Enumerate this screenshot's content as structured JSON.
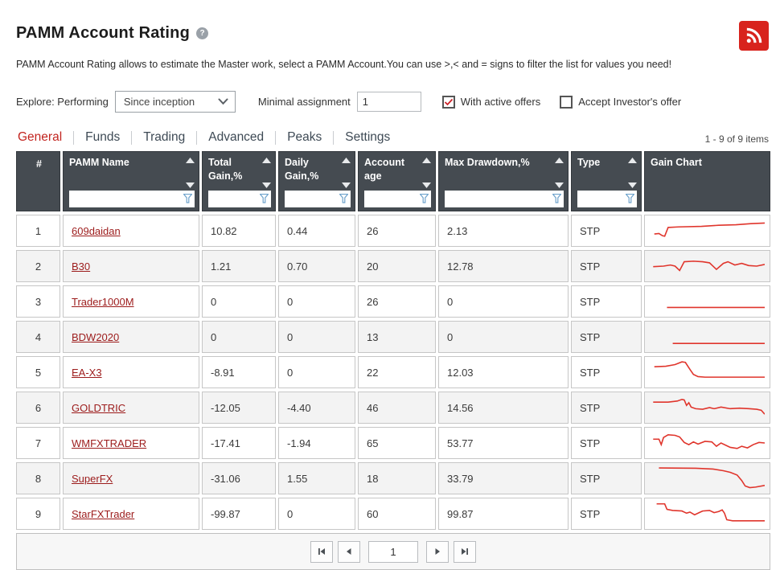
{
  "page": {
    "title": "PAMM Account Rating",
    "help_glyph": "?",
    "description": "PAMM Account Rating allows to estimate the Master work, select a PAMM Account.You can use >,< and = signs to filter the list for values you need!"
  },
  "controls": {
    "explore_label": "Explore: Performing",
    "period_selected": "Since inception",
    "minimal_assignment_label": "Minimal assignment",
    "minimal_assignment_value": "1",
    "checkboxes": [
      {
        "label": "With active offers",
        "checked": true
      },
      {
        "label": "Accept Investor's offer",
        "checked": false
      }
    ]
  },
  "tabs": {
    "items": [
      {
        "label": "General",
        "active": true
      },
      {
        "label": "Funds",
        "active": false
      },
      {
        "label": "Trading",
        "active": false
      },
      {
        "label": "Advanced",
        "active": false
      },
      {
        "label": "Peaks",
        "active": false
      },
      {
        "label": "Settings",
        "active": false
      }
    ],
    "items_count": "1 - 9 of 9 items"
  },
  "table": {
    "columns": [
      {
        "key": "idx",
        "label": "#",
        "sortable": false,
        "filterable": false,
        "align": "center"
      },
      {
        "key": "name",
        "label": "PAMM Name",
        "sortable": true,
        "filterable": true
      },
      {
        "key": "total_gain",
        "label": "Total Gain,%",
        "sortable": true,
        "filterable": true
      },
      {
        "key": "daily_gain",
        "label": "Daily Gain,%",
        "sortable": true,
        "filterable": true
      },
      {
        "key": "account_age",
        "label": "Account age",
        "sortable": true,
        "filterable": true
      },
      {
        "key": "max_drawdown",
        "label": "Max Drawdown,%",
        "sortable": true,
        "filterable": true
      },
      {
        "key": "type",
        "label": "Type",
        "sortable": true,
        "filterable": true
      },
      {
        "key": "chart",
        "label": "Gain Chart",
        "sortable": false,
        "filterable": false
      }
    ],
    "rows": [
      {
        "idx": "1",
        "name": "609daidan",
        "total_gain": "10.82",
        "daily_gain": "0.44",
        "account_age": "26",
        "max_drawdown": "2.13",
        "type": "STP",
        "spark": [
          [
            4,
            62
          ],
          [
            8,
            60
          ],
          [
            11,
            68
          ],
          [
            13,
            70
          ],
          [
            16,
            38
          ],
          [
            25,
            36
          ],
          [
            45,
            34
          ],
          [
            60,
            30
          ],
          [
            75,
            28
          ],
          [
            88,
            24
          ],
          [
            100,
            22
          ]
        ]
      },
      {
        "idx": "2",
        "name": "B30",
        "total_gain": "1.21",
        "daily_gain": "0.70",
        "account_age": "20",
        "max_drawdown": "12.78",
        "type": "STP",
        "spark": [
          [
            3,
            52
          ],
          [
            12,
            50
          ],
          [
            18,
            46
          ],
          [
            22,
            50
          ],
          [
            26,
            66
          ],
          [
            30,
            34
          ],
          [
            38,
            32
          ],
          [
            46,
            34
          ],
          [
            52,
            38
          ],
          [
            58,
            62
          ],
          [
            64,
            40
          ],
          [
            68,
            34
          ],
          [
            74,
            46
          ],
          [
            80,
            40
          ],
          [
            86,
            48
          ],
          [
            93,
            50
          ],
          [
            100,
            44
          ]
        ]
      },
      {
        "idx": "3",
        "name": "Trader1000M",
        "total_gain": "0",
        "daily_gain": "0",
        "account_age": "26",
        "max_drawdown": "0",
        "type": "STP",
        "spark": [
          [
            15,
            72
          ],
          [
            100,
            72
          ]
        ]
      },
      {
        "idx": "4",
        "name": "BDW2020",
        "total_gain": "0",
        "daily_gain": "0",
        "account_age": "13",
        "max_drawdown": "0",
        "type": "STP",
        "spark": [
          [
            20,
            74
          ],
          [
            100,
            74
          ]
        ]
      },
      {
        "idx": "5",
        "name": "EA-X3",
        "total_gain": "-8.91",
        "daily_gain": "0",
        "account_age": "22",
        "max_drawdown": "12.03",
        "type": "STP",
        "spark": [
          [
            4,
            30
          ],
          [
            14,
            28
          ],
          [
            22,
            22
          ],
          [
            28,
            12
          ],
          [
            31,
            14
          ],
          [
            35,
            40
          ],
          [
            38,
            58
          ],
          [
            42,
            66
          ],
          [
            48,
            68
          ],
          [
            100,
            68
          ]
        ]
      },
      {
        "idx": "6",
        "name": "GOLDTRIC",
        "total_gain": "-12.05",
        "daily_gain": "-4.40",
        "account_age": "46",
        "max_drawdown": "14.56",
        "type": "STP",
        "spark": [
          [
            3,
            30
          ],
          [
            16,
            30
          ],
          [
            24,
            26
          ],
          [
            28,
            20
          ],
          [
            30,
            22
          ],
          [
            32,
            42
          ],
          [
            34,
            32
          ],
          [
            36,
            48
          ],
          [
            40,
            54
          ],
          [
            46,
            56
          ],
          [
            52,
            50
          ],
          [
            56,
            54
          ],
          [
            62,
            48
          ],
          [
            70,
            54
          ],
          [
            78,
            52
          ],
          [
            86,
            54
          ],
          [
            93,
            56
          ],
          [
            97,
            60
          ],
          [
            100,
            74
          ]
        ]
      },
      {
        "idx": "7",
        "name": "WMFXTRADER",
        "total_gain": "-17.41",
        "daily_gain": "-1.94",
        "account_age": "65",
        "max_drawdown": "53.77",
        "type": "STP",
        "spark": [
          [
            3,
            36
          ],
          [
            8,
            36
          ],
          [
            10,
            56
          ],
          [
            12,
            30
          ],
          [
            16,
            20
          ],
          [
            22,
            22
          ],
          [
            26,
            28
          ],
          [
            30,
            48
          ],
          [
            34,
            56
          ],
          [
            38,
            46
          ],
          [
            42,
            54
          ],
          [
            48,
            44
          ],
          [
            54,
            46
          ],
          [
            58,
            62
          ],
          [
            62,
            50
          ],
          [
            66,
            58
          ],
          [
            70,
            66
          ],
          [
            76,
            70
          ],
          [
            80,
            62
          ],
          [
            85,
            68
          ],
          [
            90,
            56
          ],
          [
            95,
            48
          ],
          [
            100,
            50
          ]
        ]
      },
      {
        "idx": "8",
        "name": "SuperFX",
        "total_gain": "-31.06",
        "daily_gain": "1.55",
        "account_age": "18",
        "max_drawdown": "33.79",
        "type": "STP",
        "spark": [
          [
            8,
            12
          ],
          [
            40,
            13
          ],
          [
            55,
            16
          ],
          [
            64,
            22
          ],
          [
            70,
            28
          ],
          [
            76,
            38
          ],
          [
            80,
            58
          ],
          [
            83,
            78
          ],
          [
            87,
            84
          ],
          [
            92,
            82
          ],
          [
            100,
            76
          ]
        ]
      },
      {
        "idx": "9",
        "name": "StarFXTrader",
        "total_gain": "-99.87",
        "daily_gain": "0",
        "account_age": "60",
        "max_drawdown": "99.87",
        "type": "STP",
        "spark": [
          [
            6,
            14
          ],
          [
            13,
            14
          ],
          [
            15,
            34
          ],
          [
            20,
            38
          ],
          [
            28,
            40
          ],
          [
            32,
            48
          ],
          [
            35,
            44
          ],
          [
            39,
            54
          ],
          [
            43,
            46
          ],
          [
            46,
            40
          ],
          [
            52,
            38
          ],
          [
            56,
            46
          ],
          [
            60,
            42
          ],
          [
            63,
            36
          ],
          [
            65,
            48
          ],
          [
            67,
            72
          ],
          [
            72,
            76
          ],
          [
            100,
            76
          ]
        ]
      }
    ]
  },
  "pagination": {
    "current_page": "1"
  },
  "colors": {
    "accent_red": "#c2241f",
    "spark_red": "#e0352c",
    "header_bg": "#454b51",
    "link_maroon": "#9c1b1b",
    "rss_red": "#d8231d",
    "funnel_blue": "#6fa3cc"
  }
}
